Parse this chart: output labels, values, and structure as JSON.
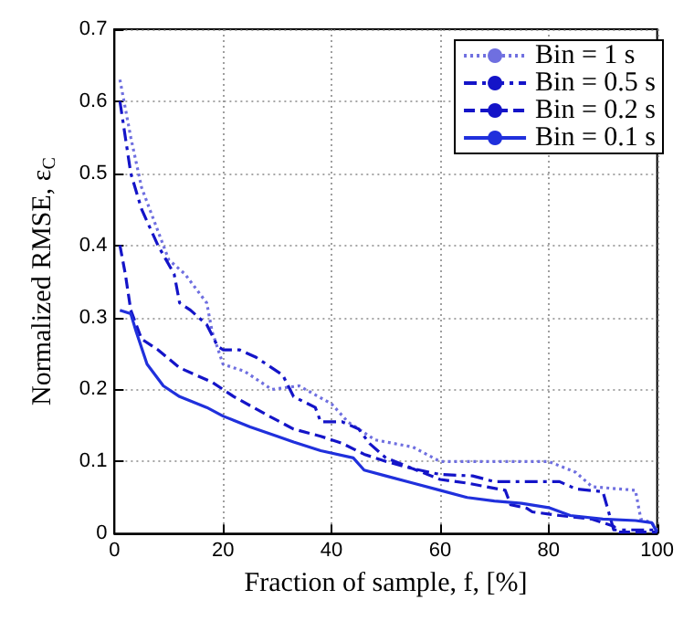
{
  "chart_data": {
    "type": "line",
    "xlabel": "Fraction of sample, f, [%]",
    "ylabel": "Normalized RMSE, ε$_{C}$",
    "xlim": [
      0,
      100
    ],
    "xticks": [
      0,
      20,
      40,
      60,
      80,
      100
    ],
    "ylim": [
      0,
      0.7
    ],
    "yticks": [
      0,
      0.1,
      0.2,
      0.3,
      0.4,
      0.5,
      0.6,
      0.7
    ],
    "grid": true,
    "legend": "top right",
    "marker": "none",
    "series": [
      {
        "name": "Bin = 1 s",
        "color": "#6f6fe0",
        "line_style": "dotted",
        "x": [
          1,
          3,
          5,
          8,
          10,
          13,
          17,
          18,
          20,
          24,
          29,
          34,
          40,
          43,
          48,
          55,
          60,
          70,
          80,
          85,
          88,
          96,
          97,
          99,
          100
        ],
        "values": [
          0.63,
          0.55,
          0.48,
          0.42,
          0.38,
          0.36,
          0.32,
          0.28,
          0.235,
          0.225,
          0.2,
          0.205,
          0.18,
          0.155,
          0.13,
          0.12,
          0.1,
          0.1,
          0.1,
          0.085,
          0.065,
          0.06,
          0.02,
          0.015,
          0.005
        ]
      },
      {
        "name": "Bin = 0.5 s",
        "color": "#1414c8",
        "line_style": "dashdot",
        "x": [
          1,
          3,
          5,
          8,
          11,
          12,
          14,
          17,
          19,
          20,
          23,
          26,
          31,
          33,
          37,
          38,
          42,
          45,
          47,
          50,
          55,
          60,
          66,
          70,
          82,
          85,
          90,
          92,
          100
        ],
        "values": [
          0.6,
          0.5,
          0.45,
          0.4,
          0.36,
          0.32,
          0.31,
          0.29,
          0.26,
          0.255,
          0.255,
          0.245,
          0.22,
          0.19,
          0.175,
          0.155,
          0.155,
          0.145,
          0.125,
          0.105,
          0.09,
          0.082,
          0.08,
          0.072,
          0.072,
          0.062,
          0.058,
          0.005,
          0.005
        ]
      },
      {
        "name": "Bin = 0.2 s",
        "color": "#1414c8",
        "line_style": "dashed",
        "x": [
          1,
          2,
          3,
          5,
          8,
          12,
          18,
          22,
          28,
          33,
          38,
          42,
          46,
          50,
          55,
          60,
          65,
          72,
          73,
          76,
          77,
          82,
          88,
          92,
          93,
          100
        ],
        "values": [
          0.4,
          0.36,
          0.31,
          0.27,
          0.255,
          0.23,
          0.21,
          0.19,
          0.165,
          0.145,
          0.135,
          0.125,
          0.11,
          0.1,
          0.09,
          0.075,
          0.07,
          0.06,
          0.04,
          0.035,
          0.03,
          0.025,
          0.02,
          0.01,
          0.002,
          0.002
        ]
      },
      {
        "name": "Bin = 0.1 s",
        "color": "#2030dc",
        "line_style": "solid",
        "x": [
          1,
          3,
          4,
          6,
          9,
          12,
          17,
          20,
          25,
          30,
          33,
          38,
          44,
          46,
          50,
          55,
          60,
          65,
          70,
          75,
          80,
          84,
          90,
          96,
          99,
          100
        ],
        "values": [
          0.31,
          0.305,
          0.28,
          0.235,
          0.205,
          0.19,
          0.175,
          0.163,
          0.148,
          0.135,
          0.127,
          0.115,
          0.105,
          0.088,
          0.08,
          0.07,
          0.06,
          0.05,
          0.045,
          0.042,
          0.036,
          0.025,
          0.02,
          0.018,
          0.015,
          0.002
        ]
      }
    ]
  }
}
